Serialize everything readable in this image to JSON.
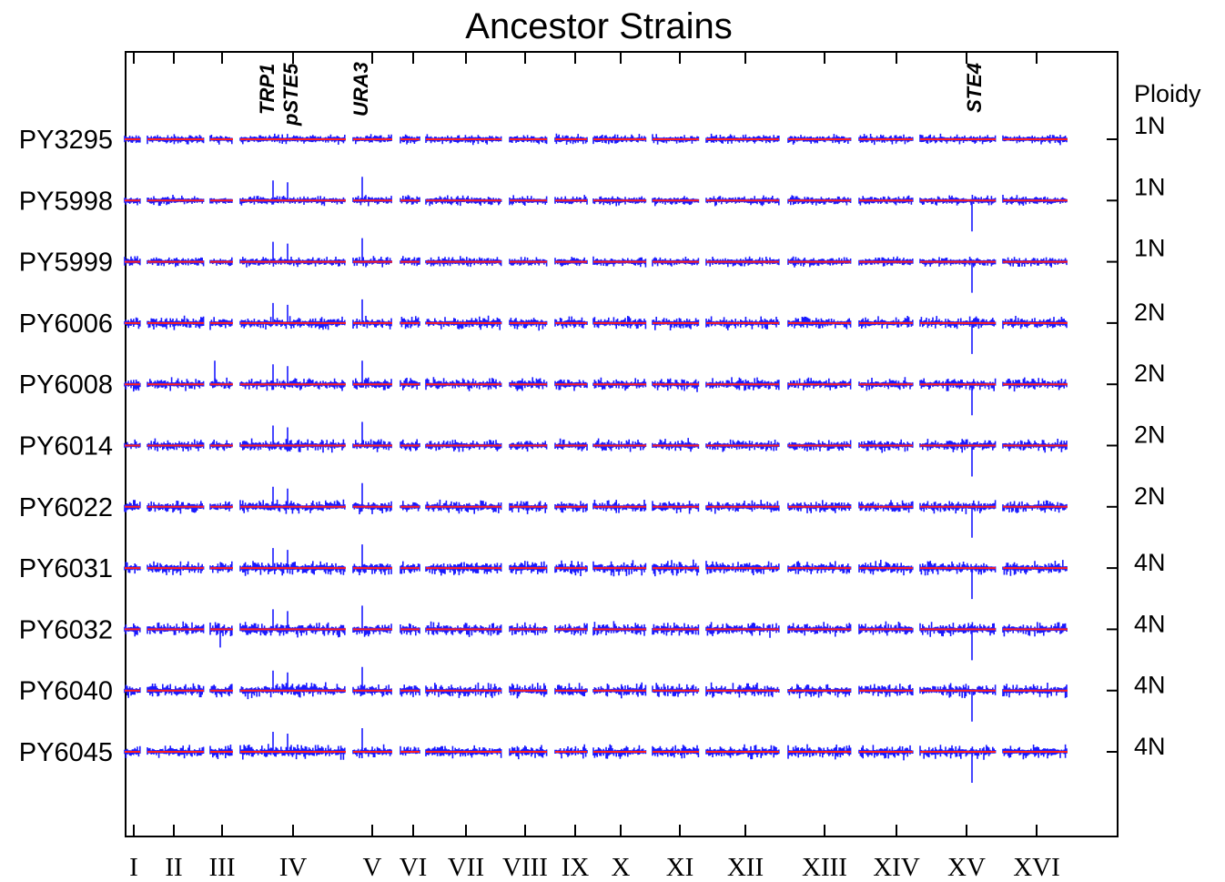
{
  "chart_data": {
    "type": "line",
    "title": "Ancestor Strains",
    "ploidy_header": "Ploidy",
    "strains": [
      {
        "name": "PY3295",
        "ploidy": "1N"
      },
      {
        "name": "PY5998",
        "ploidy": "1N"
      },
      {
        "name": "PY5999",
        "ploidy": "1N"
      },
      {
        "name": "PY6006",
        "ploidy": "2N"
      },
      {
        "name": "PY6008",
        "ploidy": "2N"
      },
      {
        "name": "PY6014",
        "ploidy": "2N"
      },
      {
        "name": "PY6022",
        "ploidy": "2N"
      },
      {
        "name": "PY6031",
        "ploidy": "4N"
      },
      {
        "name": "PY6032",
        "ploidy": "4N"
      },
      {
        "name": "PY6040",
        "ploidy": "4N"
      },
      {
        "name": "PY6045",
        "ploidy": "4N"
      }
    ],
    "chromosomes": [
      "I",
      "II",
      "III",
      "IV",
      "V",
      "VI",
      "VII",
      "VIII",
      "IX",
      "X",
      "XI",
      "XII",
      "XIII",
      "XIV",
      "XV",
      "XVI"
    ],
    "gene_markers": [
      {
        "label": "TRP1",
        "chromosome": "IV"
      },
      {
        "label": "pSTE5",
        "chromosome": "IV"
      },
      {
        "label": "URA3",
        "chromosome": "V"
      },
      {
        "label": "STE4",
        "chromosome": "XV"
      }
    ],
    "colors": {
      "signal": "#1a1aff",
      "baseline": "#ff2020",
      "axis": "#000000"
    },
    "grid": false
  }
}
